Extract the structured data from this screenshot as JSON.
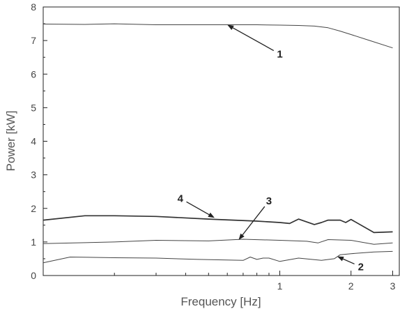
{
  "chart_data": {
    "type": "line",
    "title": "",
    "xlabel": "Frequency [Hz]",
    "ylabel": "Power  [kW]",
    "x_scale": "log",
    "xlim": [
      0.1,
      3.2
    ],
    "ylim": [
      0,
      8
    ],
    "x_ticks": [
      {
        "value": 1,
        "label": "1"
      },
      {
        "value": 2,
        "label": "2"
      },
      {
        "value": 3,
        "label": "3"
      }
    ],
    "y_ticks": [
      {
        "value": 0,
        "label": "0"
      },
      {
        "value": 1,
        "label": "1"
      },
      {
        "value": 2,
        "label": "2"
      },
      {
        "value": 3,
        "label": "3"
      },
      {
        "value": 4,
        "label": "4"
      },
      {
        "value": 5,
        "label": "5"
      },
      {
        "value": 6,
        "label": "6"
      },
      {
        "value": 7,
        "label": "7"
      },
      {
        "value": 8,
        "label": "8"
      }
    ],
    "grid": false,
    "series": [
      {
        "label": "1",
        "color": "#444444",
        "width": 1.0,
        "x": [
          0.1,
          0.15,
          0.2,
          0.3,
          0.5,
          0.8,
          1.0,
          1.2,
          1.4,
          1.6,
          1.8,
          2.0,
          2.4,
          3.0
        ],
        "y": [
          7.49,
          7.48,
          7.5,
          7.47,
          7.47,
          7.47,
          7.46,
          7.45,
          7.43,
          7.38,
          7.28,
          7.18,
          7.0,
          6.78
        ],
        "annotation": {
          "text": "1",
          "x": 0.6,
          "y": 7.47,
          "label_x": 1.0,
          "label_y": 6.6
        }
      },
      {
        "label": "2",
        "color": "#444444",
        "width": 1.0,
        "x": [
          0.1,
          0.13,
          0.2,
          0.3,
          0.45,
          0.7,
          0.75,
          0.8,
          0.85,
          0.9,
          1.0,
          1.2,
          1.5,
          1.7,
          1.8,
          2.0,
          2.5,
          3.0
        ],
        "y": [
          0.38,
          0.55,
          0.53,
          0.52,
          0.48,
          0.45,
          0.55,
          0.48,
          0.52,
          0.52,
          0.42,
          0.52,
          0.45,
          0.5,
          0.62,
          0.65,
          0.7,
          0.72
        ],
        "annotation": {
          "text": "2",
          "x": 1.75,
          "y": 0.57,
          "label_x": 2.2,
          "label_y": 0.26
        }
      },
      {
        "label": "3",
        "color": "#444444",
        "width": 1.0,
        "x": [
          0.1,
          0.2,
          0.3,
          0.5,
          0.7,
          1.0,
          1.3,
          1.45,
          1.6,
          2.0,
          2.5,
          3.0
        ],
        "y": [
          0.95,
          1.0,
          1.05,
          1.03,
          1.08,
          1.05,
          1.02,
          0.97,
          1.07,
          1.05,
          0.93,
          0.97
        ],
        "annotation": {
          "text": "3",
          "x": 0.67,
          "y": 1.06,
          "label_x": 0.9,
          "label_y": 2.22
        }
      },
      {
        "label": "4",
        "color": "#333333",
        "width": 1.7,
        "x": [
          0.1,
          0.15,
          0.2,
          0.3,
          0.5,
          0.8,
          1.0,
          1.1,
          1.2,
          1.4,
          1.5,
          1.6,
          1.8,
          1.9,
          2.0,
          2.5,
          3.0
        ],
        "y": [
          1.65,
          1.78,
          1.78,
          1.76,
          1.68,
          1.62,
          1.58,
          1.55,
          1.68,
          1.52,
          1.58,
          1.65,
          1.65,
          1.58,
          1.67,
          1.28,
          1.3
        ],
        "annotation": {
          "text": "4",
          "x": 0.53,
          "y": 1.72,
          "label_x": 0.38,
          "label_y": 2.3
        }
      }
    ]
  }
}
